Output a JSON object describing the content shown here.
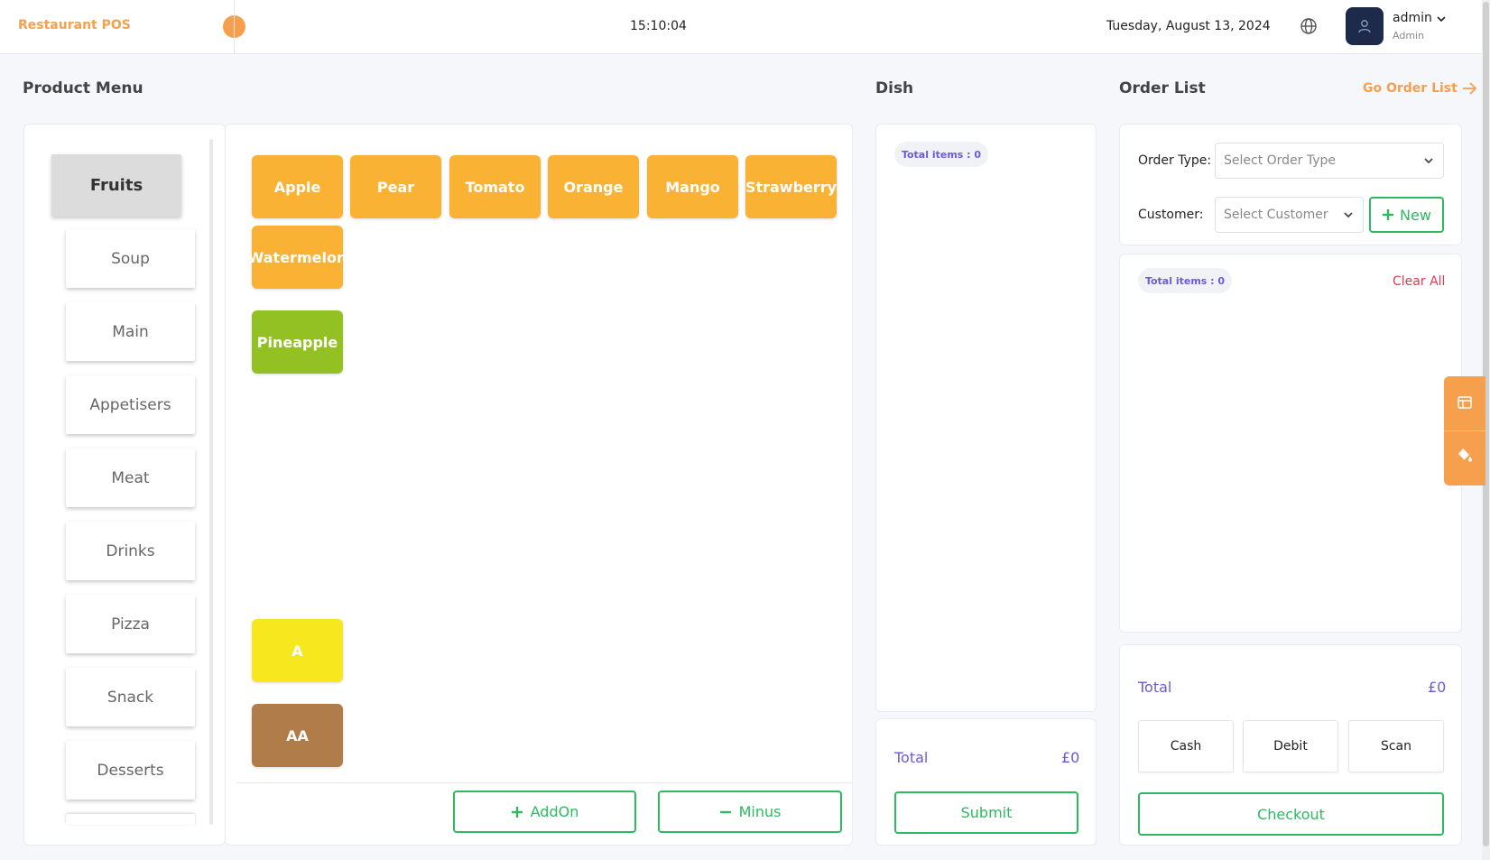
{
  "header": {
    "brand": "Restaurant POS",
    "time": "15:10:04",
    "date": "Tuesday, August 13, 2024",
    "user_name": "admin",
    "user_role": "Admin"
  },
  "sections": {
    "product_menu": "Product Menu",
    "dish": "Dish",
    "order_list": "Order List",
    "go_order_list": "Go Order List"
  },
  "categories": [
    "Fruits",
    "Soup",
    "Main",
    "Appetisers",
    "Meat",
    "Drinks",
    "Pizza",
    "Snack",
    "Desserts"
  ],
  "products": [
    {
      "label": "Apple",
      "color": "#f9b233"
    },
    {
      "label": "Pear",
      "color": "#f9b233"
    },
    {
      "label": "Tomato",
      "color": "#f9b233"
    },
    {
      "label": "Orange",
      "color": "#f9b233"
    },
    {
      "label": "Mango",
      "color": "#f9b233"
    },
    {
      "label": "Strawberry",
      "color": "#f9b233"
    },
    {
      "label": "Watermelon",
      "color": "#f9b233"
    },
    {
      "label": "Pineapple",
      "color": "#93c123"
    },
    {
      "label": "A",
      "color": "#f6e71e"
    },
    {
      "label": "AA",
      "color": "#b07d4a"
    }
  ],
  "actions": {
    "addon": "AddOn",
    "minus": "Minus"
  },
  "dish": {
    "total_items": "Total items : 0",
    "total_label": "Total",
    "total_value": "£0",
    "submit": "Submit"
  },
  "order": {
    "order_type_label": "Order Type:",
    "order_type_placeholder": "Select Order Type",
    "customer_label": "Customer:",
    "customer_placeholder": "Select Customer",
    "new_button": "New",
    "total_items": "Total items : 0",
    "clear_all": "Clear All",
    "total_label": "Total",
    "total_value": "£0",
    "payments": [
      "Cash",
      "Debit",
      "Scan"
    ],
    "checkout": "Checkout"
  },
  "colors": {
    "accent": "#f6a04d",
    "green": "#2eb960",
    "purple": "#6a5bd6",
    "danger": "#e53950"
  }
}
